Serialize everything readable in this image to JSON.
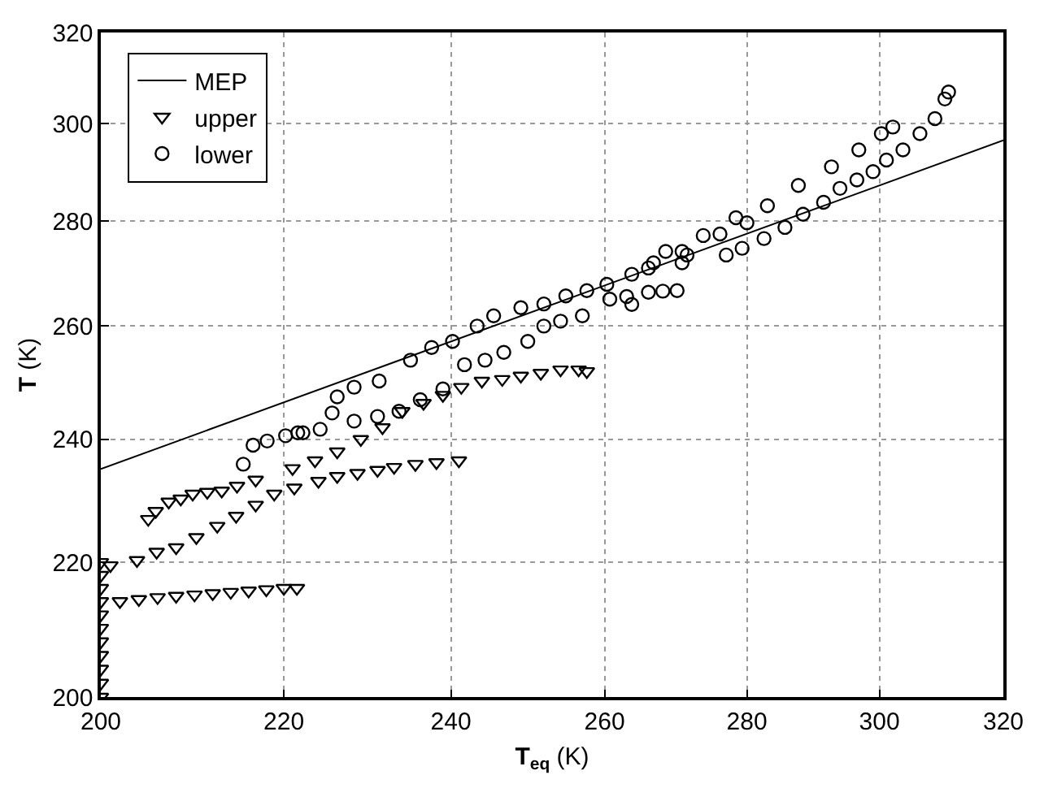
{
  "chart_data": {
    "type": "scatter",
    "xlabel": "T$_{eq}$ (K)",
    "ylabel": "T (K)",
    "log": "xy",
    "xlim": [
      200,
      320
    ],
    "ylim": [
      200,
      320
    ],
    "xticks": [
      200,
      220,
      240,
      260,
      280,
      300,
      320
    ],
    "yticks": [
      200,
      220,
      240,
      260,
      280,
      300,
      320
    ],
    "grid": true,
    "legend": "top left",
    "series": [
      {
        "name": "MEP",
        "type": "line",
        "color": "#000000",
        "marker": "none",
        "line_style": "solid",
        "x": [
          200,
          320
        ],
        "values": [
          235,
          296.5
        ]
      },
      {
        "name": "upper",
        "color": "#000000",
        "marker": "triangle",
        "x": [
          200,
          200,
          200,
          200,
          200,
          200,
          200,
          200,
          200,
          200,
          200,
          202,
          204,
          206,
          208,
          210,
          212,
          214,
          216,
          218,
          220,
          221.5,
          201,
          203.8,
          205.9,
          208,
          210.2,
          212.5,
          214.6,
          216.8,
          218.9,
          221.2,
          224,
          226.2,
          228.6,
          231,
          233,
          235.6,
          238.2,
          241,
          205,
          205.8,
          207.2,
          208.5,
          209.8,
          211.4,
          213,
          214.7,
          216.8,
          221,
          223.6,
          226.2,
          229,
          231.6,
          234,
          236.6,
          239,
          241.3,
          243.9,
          246.5,
          248.9,
          251.5,
          254.1,
          256.5,
          257.6
        ],
        "values": [
          200,
          202,
          204,
          206,
          208,
          210,
          212,
          214,
          216,
          218,
          220,
          214,
          214.3,
          214.6,
          214.8,
          215,
          215.2,
          215.4,
          215.6,
          215.8,
          216,
          216,
          219.5,
          220.3,
          221.6,
          222.3,
          223.9,
          225.7,
          227.3,
          229.1,
          230.9,
          231.9,
          233,
          233.8,
          234.3,
          234.8,
          235.3,
          235.8,
          236.1,
          236.4,
          226.8,
          228.1,
          229.6,
          230.1,
          230.9,
          231.2,
          231.4,
          232.2,
          233.2,
          235.1,
          236.4,
          237.9,
          240,
          242,
          244.8,
          246.2,
          247.6,
          249,
          250.1,
          250.4,
          251,
          251.5,
          252.1,
          252.1,
          251.8
        ]
      },
      {
        "name": "lower",
        "color": "#000000",
        "marker": "circle",
        "x": [
          215.4,
          216.5,
          218.1,
          220.2,
          222.2,
          224.2,
          225.6,
          226.2,
          228.2,
          231.2,
          235,
          237.6,
          240.2,
          243.3,
          245.4,
          248.9,
          251.9,
          254.8,
          257.6,
          260.3,
          263.7,
          266.7,
          268.4,
          270.7,
          273.7,
          278.4,
          283,
          287.6,
          292.6,
          296.8,
          300.3,
          302.1,
          221.6,
          228.2,
          231,
          233.6,
          236.2,
          239,
          241.7,
          244.3,
          246.7,
          249.8,
          251.9,
          254.1,
          257,
          260.7,
          263,
          266,
          268,
          270,
          263.7,
          266,
          270.7,
          271.4,
          276.1,
          277,
          279.3,
          280,
          282.5,
          285.6,
          288.3,
          291.4,
          293.9,
          296.5,
          299,
          301.1,
          303.7,
          306.4,
          308.8,
          310.4,
          311
        ],
        "values": [
          235.8,
          239,
          239.7,
          240.6,
          241.1,
          241.7,
          244.5,
          247.3,
          249,
          250.1,
          253.8,
          256.1,
          257.2,
          260,
          261.9,
          263.4,
          264.1,
          265.6,
          266.6,
          267.8,
          269.7,
          271.9,
          274.1,
          274.1,
          277.2,
          280.7,
          283.1,
          287.2,
          291,
          294.5,
          297.9,
          299.3,
          241.1,
          243.1,
          243.9,
          244.8,
          246.8,
          248.7,
          253,
          253.8,
          255.2,
          257.2,
          260,
          260.9,
          261.9,
          265,
          265.5,
          266.3,
          266.5,
          266.6,
          264,
          270.9,
          271.9,
          273.4,
          277.5,
          273.4,
          274.7,
          279.7,
          276.6,
          278.8,
          281.4,
          283.8,
          286.6,
          288.3,
          290,
          292.4,
          294.5,
          297.9,
          301.1,
          305.3,
          306.8
        ]
      }
    ]
  }
}
